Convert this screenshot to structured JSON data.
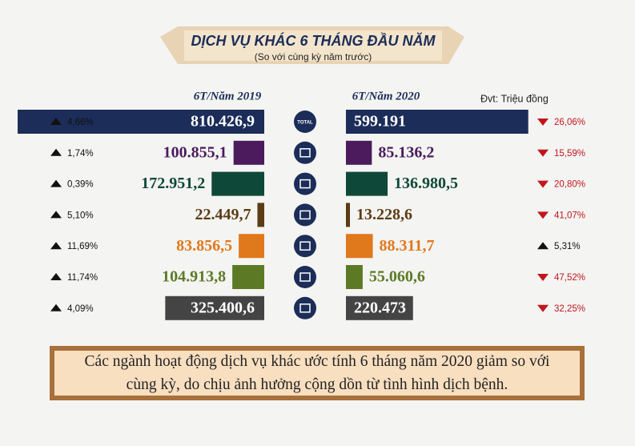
{
  "chart_data": {
    "type": "butterfly",
    "title": "DỊCH VỤ KHÁC 6 THÁNG ĐẦU NĂM",
    "subtitle": "(So với cùng kỳ năm trước)",
    "unit": "Đvt: Triệu đồng",
    "categories": [
      "TOTAL",
      null,
      null,
      null,
      null,
      null,
      null
    ],
    "colors": [
      "#1b2d58",
      "#4b1b5e",
      "#0e4838",
      "#5b3c16",
      "#e0781c",
      "#5c7a26",
      "#444444"
    ],
    "series": [
      {
        "name": "6T/Năm 2019",
        "values": [
          810426.9,
          100855.1,
          172951.2,
          22449.7,
          83856.5,
          104913.8,
          325400.6
        ],
        "value_labels": [
          "810.426,9",
          "100.855,1",
          "172.951,2",
          "22.449,7",
          "83.856,5",
          "104.913,8",
          "325.400,6"
        ],
        "change": [
          4.66,
          1.74,
          0.39,
          5.1,
          11.69,
          11.74,
          4.09
        ],
        "change_labels": [
          "4,66%",
          "1,74%",
          "0,39%",
          "5,10%",
          "11,69%",
          "11,74%",
          "4,09%"
        ]
      },
      {
        "name": "6T/Năm 2020",
        "values": [
          599191,
          85136.2,
          136980.5,
          13228.6,
          88311.7,
          55060.6,
          220473
        ],
        "value_labels": [
          "599.191",
          "85.136,2",
          "136.980,5",
          "13.228,6",
          "88.311,7",
          "55.060,6",
          "220.473"
        ],
        "change": [
          -26.06,
          -15.59,
          -20.8,
          -41.07,
          5.31,
          -47.52,
          -32.25
        ],
        "change_labels": [
          "26,06%",
          "15,59%",
          "20,80%",
          "41,07%",
          "5,31%",
          "47,52%",
          "32,25%"
        ]
      }
    ]
  },
  "note": "Các ngành hoạt động dịch vụ khác ước tính 6 tháng năm 2020 giảm so với cùng kỳ, do chịu ảnh hưởng cộng dồn từ tình hình dịch bệnh."
}
